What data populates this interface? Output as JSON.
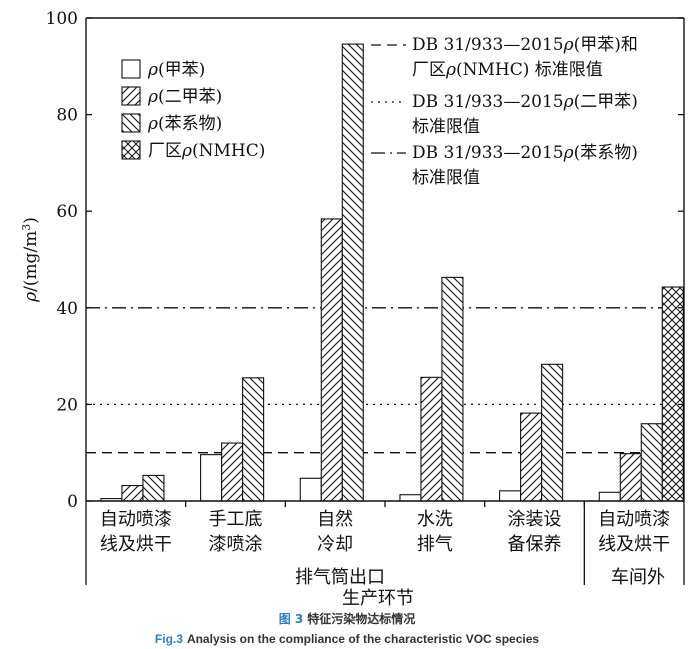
{
  "chart_data": {
    "type": "bar",
    "ylabel": "ρ/(mg/m³)",
    "ylabel_parts": {
      "rho": "ρ",
      "unit": "/(mg/m",
      "exp": "3",
      "close": ")"
    },
    "ylim": [
      0,
      100
    ],
    "yticks": [
      "0",
      "20",
      "40",
      "60",
      "80",
      "100"
    ],
    "categories": [
      [
        "自动喷漆",
        "线及烘干"
      ],
      [
        "手工底",
        "漆喷涂"
      ],
      [
        "自然",
        "冷却"
      ],
      [
        "水洗",
        "排气"
      ],
      [
        "涂装设",
        "备保养"
      ],
      [
        "自动喷漆",
        "线及烘干"
      ]
    ],
    "groups": [
      {
        "label": "排气筒出口"
      },
      {
        "label": "车间外"
      }
    ],
    "xlabel": "生产环节",
    "series": [
      {
        "name": "ρ(甲苯)",
        "pattern": "none",
        "values": [
          0.5,
          9.6,
          4.7,
          1.3,
          2.1,
          1.8
        ]
      },
      {
        "name": "ρ(二甲苯)",
        "pattern": "forward-hatch",
        "values": [
          3.2,
          12.0,
          58.4,
          25.6,
          18.2,
          9.8
        ]
      },
      {
        "name": "ρ(苯系物)",
        "pattern": "back-hatch",
        "values": [
          5.3,
          25.5,
          94.6,
          46.3,
          28.3,
          16.0
        ]
      },
      {
        "name": "厂区ρ(NMHC)",
        "pattern": "cross-hatch",
        "values": [
          null,
          null,
          null,
          null,
          null,
          44.3
        ]
      }
    ],
    "legend": [
      {
        "rho": "ρ",
        "rest": "(甲苯)"
      },
      {
        "rho": "ρ",
        "rest": "(二甲苯)"
      },
      {
        "rho": "ρ",
        "rest": "(苯系物)"
      },
      {
        "pre": "厂区",
        "rho": "ρ",
        "rest": "(NMHC)"
      }
    ],
    "reference_lines": [
      {
        "value": 10,
        "style": "dashed",
        "line1": [
          "DB 31/933—2015",
          "ρ",
          "(甲苯)和"
        ],
        "line2": [
          "厂区",
          "ρ",
          "(NMHC) 标准限值"
        ]
      },
      {
        "value": 20,
        "style": "dotted",
        "line1": [
          "DB 31/933—2015",
          "ρ",
          "(二甲苯)"
        ],
        "line2": [
          "标准限值"
        ]
      },
      {
        "value": 40,
        "style": "dash-dot",
        "line1": [
          "DB 31/933—2015",
          "ρ",
          "(苯系物)"
        ],
        "line2": [
          "标准限值"
        ]
      }
    ],
    "grid": false,
    "legend_position": "top-left and top-right"
  },
  "caption": {
    "cn_number": "图 3",
    "cn_title": "特征污染物达标情况",
    "en_number": "Fig.3",
    "en_title": "Analysis on the compliance of the characteristic VOC species"
  }
}
